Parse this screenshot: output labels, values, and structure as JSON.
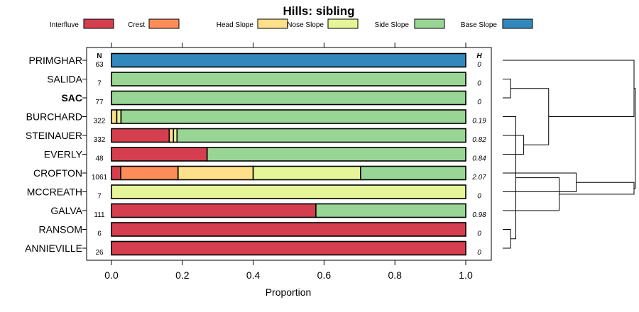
{
  "chart_data": {
    "type": "bar",
    "orientation": "horizontal",
    "stacked": true,
    "title": "Hills: sibling",
    "xlabel": "Proportion",
    "xlim": [
      0,
      1
    ],
    "xticks": [
      "0.0",
      "0.2",
      "0.4",
      "0.6",
      "0.8",
      "1.0"
    ],
    "n_header": "N",
    "h_header": "H",
    "legend": [
      {
        "name": "Interfluve",
        "color": "#d53e4f"
      },
      {
        "name": "Crest",
        "color": "#fc8d59"
      },
      {
        "name": "Head Slope",
        "color": "#fee08b"
      },
      {
        "name": "Nose Slope",
        "color": "#e6f598"
      },
      {
        "name": "Side Slope",
        "color": "#99d594"
      },
      {
        "name": "Base Slope",
        "color": "#3288bd"
      }
    ],
    "series_order": [
      "Interfluve",
      "Crest",
      "Head Slope",
      "Nose Slope",
      "Side Slope",
      "Base Slope"
    ],
    "rows": [
      {
        "name": "PRIMGHAR",
        "n": "63",
        "h": "0",
        "bold": false,
        "values": [
          0,
          0,
          0,
          0,
          0,
          1.0
        ]
      },
      {
        "name": "SALIDA",
        "n": "7",
        "h": "0",
        "bold": false,
        "values": [
          0,
          0,
          0,
          0,
          1.0,
          0
        ]
      },
      {
        "name": "SAC",
        "n": "77",
        "h": "0",
        "bold": true,
        "values": [
          0,
          0,
          0,
          0,
          1.0,
          0
        ]
      },
      {
        "name": "BURCHARD",
        "n": "322",
        "h": "0.19",
        "bold": false,
        "values": [
          0,
          0,
          0.015,
          0.012,
          0.973,
          0
        ]
      },
      {
        "name": "STEINAUER",
        "n": "332",
        "h": "0.82",
        "bold": false,
        "values": [
          0.163,
          0,
          0.012,
          0.01,
          0.815,
          0
        ]
      },
      {
        "name": "EVERLY",
        "n": "48",
        "h": "0.84",
        "bold": false,
        "values": [
          0.27,
          0,
          0,
          0,
          0.73,
          0
        ]
      },
      {
        "name": "CROFTON",
        "n": "1061",
        "h": "2.07",
        "bold": false,
        "values": [
          0.026,
          0.162,
          0.212,
          0.303,
          0.297,
          0
        ]
      },
      {
        "name": "MCCREATH",
        "n": "7",
        "h": "0",
        "bold": false,
        "values": [
          0,
          0,
          0,
          1.0,
          0,
          0
        ]
      },
      {
        "name": "GALVA",
        "n": "111",
        "h": "0.98",
        "bold": false,
        "values": [
          0.577,
          0,
          0,
          0,
          0.423,
          0
        ]
      },
      {
        "name": "RANSOM",
        "n": "6",
        "h": "0",
        "bold": false,
        "values": [
          1.0,
          0,
          0,
          0,
          0,
          0
        ]
      },
      {
        "name": "ANNIEVILLE",
        "n": "26",
        "h": "0",
        "bold": false,
        "values": [
          1.0,
          0,
          0,
          0,
          0,
          0
        ]
      }
    ],
    "dendrogram_merges": [
      {
        "a": 1,
        "b": 2,
        "h": 0.06
      },
      {
        "a": 9,
        "b": 10,
        "h": 0.06
      },
      {
        "a": "m1",
        "b": 3,
        "h": 0.1
      },
      {
        "a": 4,
        "b": 5,
        "h": 0.16
      },
      {
        "a": "m0",
        "b": "m3",
        "h": 0.35
      },
      {
        "a": 8,
        "b": "m1b",
        "h": 0.43
      },
      {
        "a": 6,
        "b": 7,
        "h": 0.56
      },
      {
        "a": 0,
        "b": "m4",
        "h": 1.0
      },
      {
        "a": "m6",
        "b": "m5",
        "h": 1.0
      },
      {
        "a": "m7",
        "b": "m8",
        "h": 1.01
      }
    ]
  }
}
